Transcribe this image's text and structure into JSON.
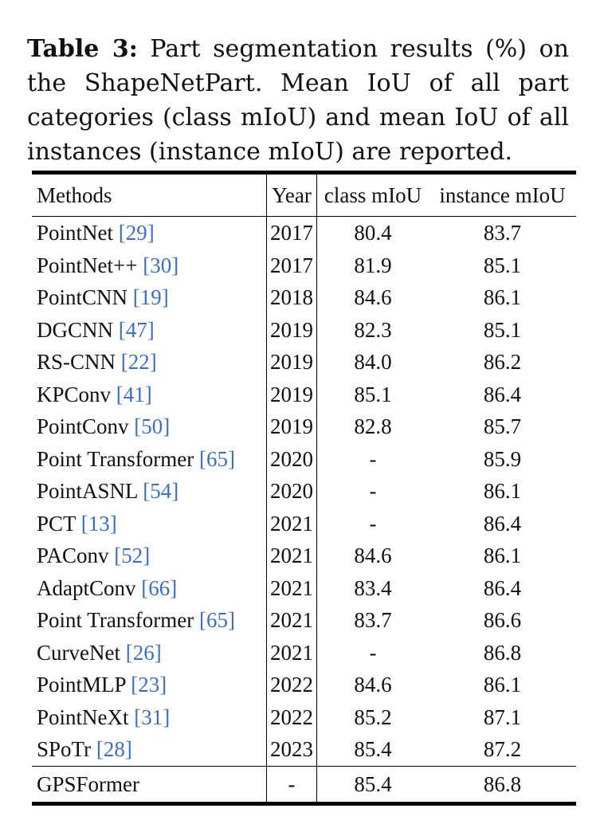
{
  "caption": {
    "label": "Table 3:",
    "text": " Part segmentation results (%) on the ShapeNetPart. Mean IoU of all part categories (class mIoU) and mean IoU of all instances (instance mIoU) are reported."
  },
  "table": {
    "headers": {
      "method": "Methods",
      "year": "Year",
      "class": "class mIoU",
      "instance": "instance mIoU"
    },
    "rows": [
      {
        "method": "PointNet ",
        "ref": "[29]",
        "year": "2017",
        "class_miou": "80.4",
        "instance_miou": "83.7"
      },
      {
        "method": "PointNet++ ",
        "ref": "[30]",
        "year": "2017",
        "class_miou": "81.9",
        "instance_miou": "85.1"
      },
      {
        "method": "PointCNN ",
        "ref": "[19]",
        "year": "2018",
        "class_miou": "84.6",
        "instance_miou": "86.1"
      },
      {
        "method": "DGCNN ",
        "ref": "[47]",
        "year": "2019",
        "class_miou": "82.3",
        "instance_miou": "85.1"
      },
      {
        "method": "RS-CNN ",
        "ref": "[22]",
        "year": "2019",
        "class_miou": "84.0",
        "instance_miou": "86.2"
      },
      {
        "method": "KPConv ",
        "ref": "[41]",
        "year": "2019",
        "class_miou": "85.1",
        "instance_miou": "86.4"
      },
      {
        "method": "PointConv ",
        "ref": "[50]",
        "year": "2019",
        "class_miou": "82.8",
        "instance_miou": "85.7"
      },
      {
        "method": "Point Transformer ",
        "ref": "[65]",
        "year": "2020",
        "class_miou": "-",
        "instance_miou": "85.9"
      },
      {
        "method": "PointASNL ",
        "ref": "[54]",
        "year": "2020",
        "class_miou": "-",
        "instance_miou": "86.1"
      },
      {
        "method": "PCT ",
        "ref": "[13]",
        "year": "2021",
        "class_miou": "-",
        "instance_miou": "86.4"
      },
      {
        "method": "PAConv ",
        "ref": "[52]",
        "year": "2021",
        "class_miou": "84.6",
        "instance_miou": "86.1"
      },
      {
        "method": "AdaptConv ",
        "ref": "[66]",
        "year": "2021",
        "class_miou": "83.4",
        "instance_miou": "86.4"
      },
      {
        "method": "Point Transformer ",
        "ref": "[65]",
        "year": "2021",
        "class_miou": "83.7",
        "instance_miou": "86.6"
      },
      {
        "method": "CurveNet ",
        "ref": "[26]",
        "year": "2021",
        "class_miou": "-",
        "instance_miou": "86.8"
      },
      {
        "method": "PointMLP ",
        "ref": "[23]",
        "year": "2022",
        "class_miou": "84.6",
        "instance_miou": "86.1"
      },
      {
        "method": "PointNeXt ",
        "ref": "[31]",
        "year": "2022",
        "class_miou": "85.2",
        "instance_miou": "87.1"
      },
      {
        "method": "SPoTr ",
        "ref": "[28]",
        "year": "2023",
        "class_miou": "85.4",
        "instance_miou": "87.2"
      }
    ],
    "ours": {
      "method": "GPSFormer",
      "year": "-",
      "class_miou": "85.4",
      "instance_miou": "86.8"
    }
  },
  "colors": {
    "citation": "#3a6fc4",
    "text": "#111111"
  }
}
